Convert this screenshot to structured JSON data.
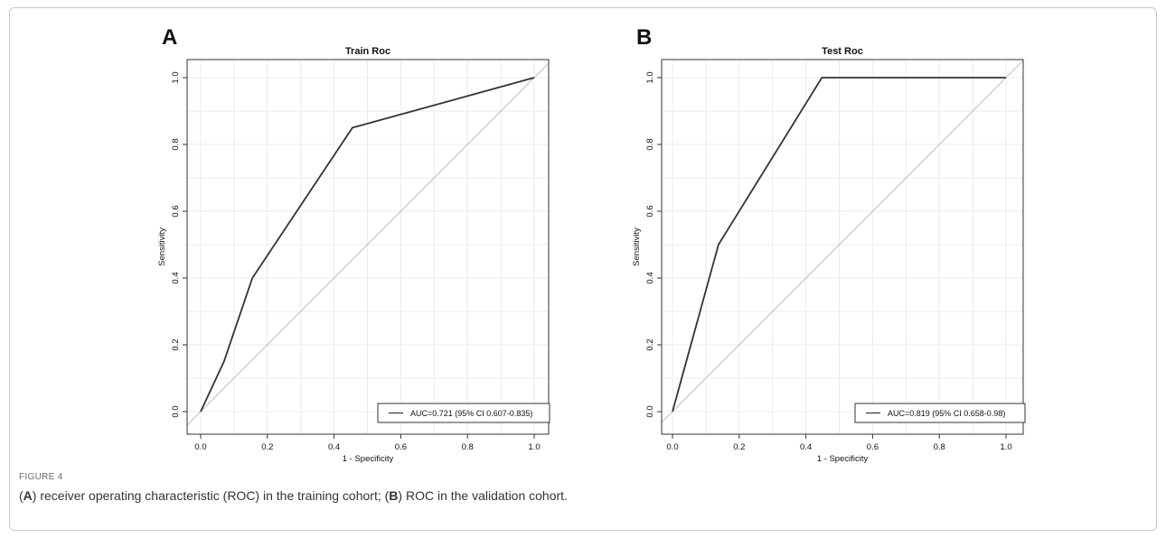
{
  "figure": {
    "label": "FIGURE 4",
    "caption_parts": [
      {
        "text": "(",
        "bold": false
      },
      {
        "text": "A",
        "bold": true
      },
      {
        "text": ") receiver operating characteristic (ROC) in the training cohort; (",
        "bold": false
      },
      {
        "text": "B",
        "bold": true
      },
      {
        "text": ") ROC in the validation cohort.",
        "bold": false
      }
    ]
  },
  "chart_data": [
    {
      "type": "line",
      "panel": "A",
      "title": "Train Roc",
      "xlabel": "1 - Specificity",
      "ylabel": "Sensitivity",
      "xlim": [
        0,
        1
      ],
      "ylim": [
        0,
        1
      ],
      "xticks": [
        "0.0",
        "0.2",
        "0.4",
        "0.6",
        "0.8",
        "1.0"
      ],
      "yticks": [
        "0.0",
        "0.2",
        "0.4",
        "0.6",
        "0.8",
        "1.0"
      ],
      "grid": true,
      "legend_position": "bottom-right",
      "series": [
        {
          "name": "AUC=0.721 (95% CI 0.607-0.835)",
          "color": "#333333",
          "x": [
            0,
            0.07,
            0.155,
            0.455,
            1.0
          ],
          "y": [
            0,
            0.15,
            0.4,
            0.85,
            1.0
          ]
        }
      ],
      "reference_line": {
        "color": "#c8c8c8",
        "x": [
          0,
          1
        ],
        "y": [
          0,
          1
        ]
      }
    },
    {
      "type": "line",
      "panel": "B",
      "title": "Test Roc",
      "xlabel": "1 - Specificity",
      "ylabel": "Sensitivity",
      "xlim": [
        0,
        1
      ],
      "ylim": [
        0,
        1
      ],
      "xticks": [
        "0.0",
        "0.2",
        "0.4",
        "0.6",
        "0.8",
        "1.0"
      ],
      "yticks": [
        "0.0",
        "0.2",
        "0.4",
        "0.6",
        "0.8",
        "1.0"
      ],
      "grid": true,
      "legend_position": "bottom-right",
      "series": [
        {
          "name": "AUC=0.819 (95% CI 0.658-0.98)",
          "color": "#333333",
          "x": [
            0,
            0.138,
            0.448,
            1.0
          ],
          "y": [
            0,
            0.5,
            1.0,
            1.0
          ]
        }
      ],
      "reference_line": {
        "color": "#c8c8c8",
        "x": [
          0,
          1
        ],
        "y": [
          0,
          1
        ]
      }
    }
  ]
}
